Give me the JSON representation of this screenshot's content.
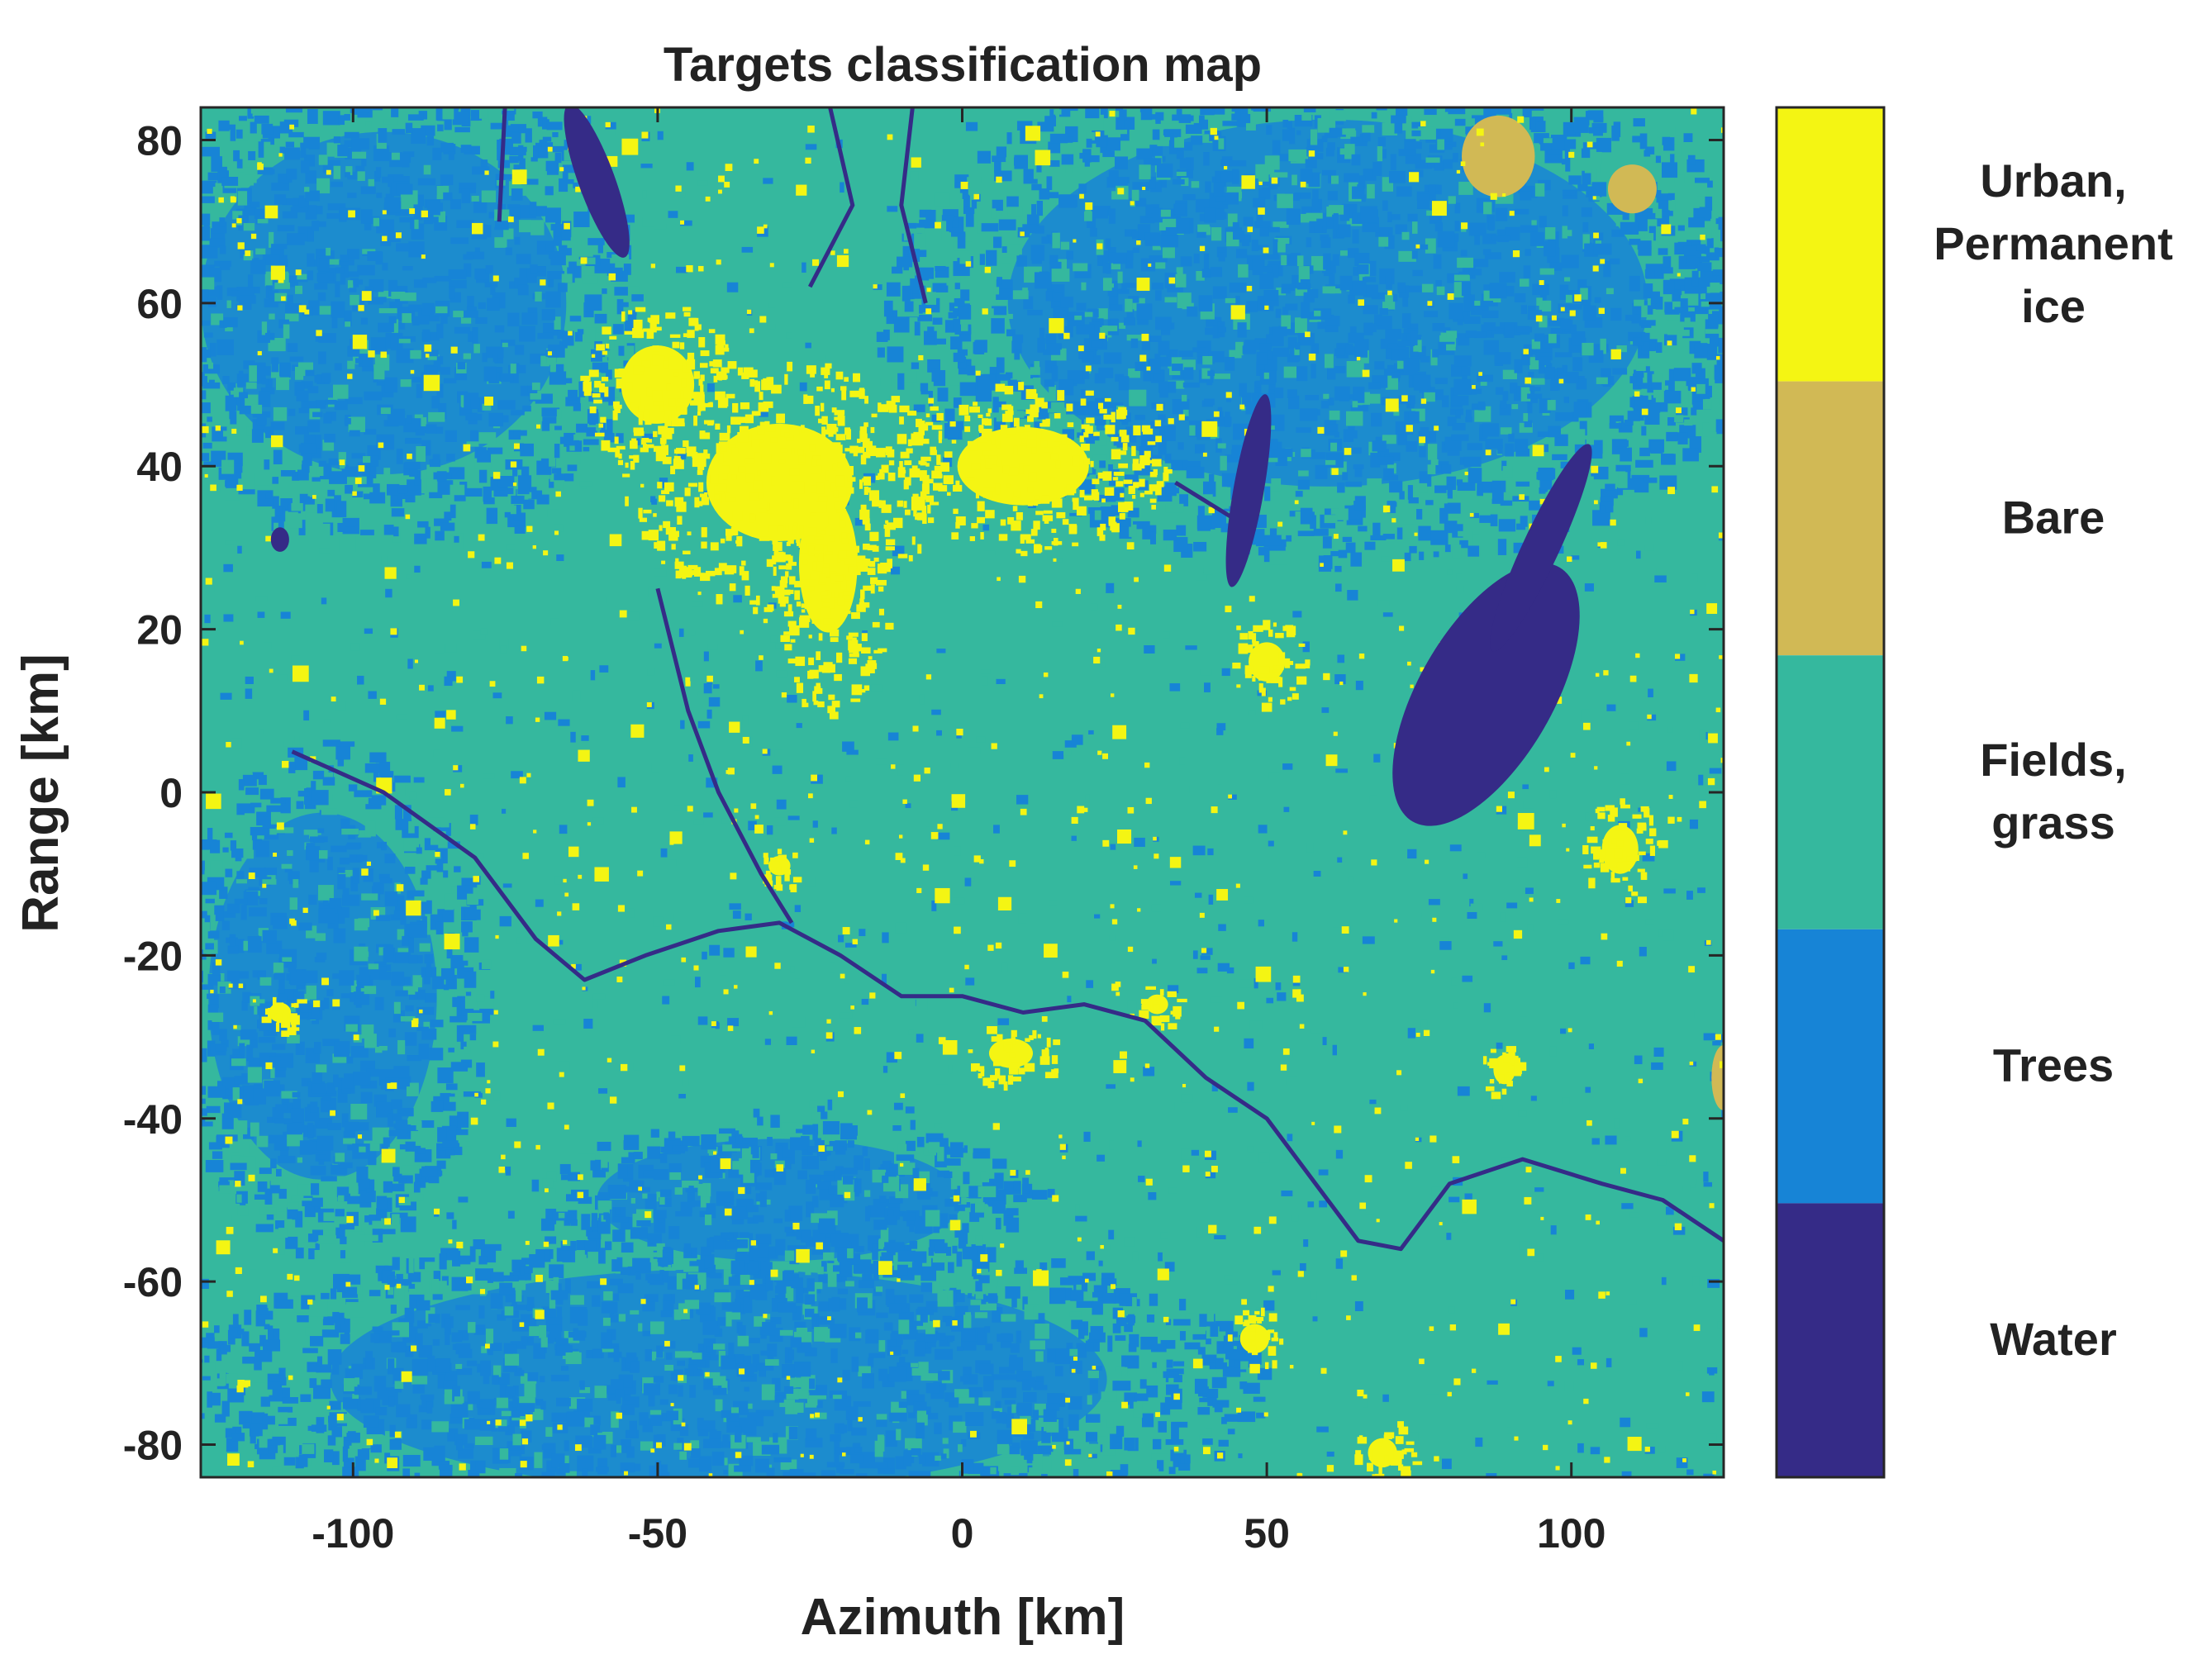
{
  "chart_data": {
    "type": "heatmap",
    "title": "Targets classification map",
    "xlabel": "Azimuth [km]",
    "ylabel": "Range [km]",
    "xlim": [
      -125,
      125
    ],
    "ylim": [
      -84,
      84
    ],
    "xticks": [
      -100,
      -50,
      0,
      50,
      100
    ],
    "yticks": [
      80,
      60,
      40,
      20,
      0,
      -20,
      -40,
      -60,
      -80
    ],
    "classes": [
      {
        "label": "Urban, Permanent ice",
        "lines": [
          "Urban,",
          "Permanent",
          "ice"
        ],
        "color": "#f4f513"
      },
      {
        "label": "Bare",
        "lines": [
          "Bare"
        ],
        "color": "#d1b955"
      },
      {
        "label": "Fields, grass",
        "lines": [
          "Fields,",
          "grass"
        ],
        "color": "#35b89e"
      },
      {
        "label": "Trees",
        "lines": [
          "Trees"
        ],
        "color": "#1784d6"
      },
      {
        "label": "Water",
        "lines": [
          "Water"
        ],
        "color": "#352b87"
      }
    ],
    "regions": {
      "water_lakes": [
        {
          "cx": 86,
          "cy": 12,
          "rx": 11,
          "ry": 18,
          "rot": 30
        },
        {
          "cx": 95,
          "cy": 30,
          "rx": 3,
          "ry": 14,
          "rot": 25
        },
        {
          "cx": 47,
          "cy": 37,
          "rx": 2.5,
          "ry": 12,
          "rot": 10
        },
        {
          "cx": -60,
          "cy": 75,
          "rx": 3,
          "ry": 10,
          "rot": -20
        },
        {
          "cx": -112,
          "cy": 31,
          "rx": 1.5,
          "ry": 1.5,
          "rot": 0
        }
      ],
      "water_rivers": [
        [
          [
            -110,
            5
          ],
          [
            -95,
            0
          ],
          [
            -80,
            -8
          ],
          [
            -70,
            -18
          ],
          [
            -62,
            -23
          ],
          [
            -52,
            -20
          ],
          [
            -40,
            -17
          ],
          [
            -30,
            -16
          ],
          [
            -20,
            -20
          ],
          [
            -10,
            -25
          ],
          [
            0,
            -25
          ],
          [
            10,
            -27
          ],
          [
            20,
            -26
          ],
          [
            30,
            -28
          ],
          [
            40,
            -35
          ],
          [
            50,
            -40
          ],
          [
            58,
            -48
          ],
          [
            65,
            -55
          ],
          [
            72,
            -56
          ],
          [
            80,
            -48
          ],
          [
            92,
            -45
          ],
          [
            105,
            -48
          ],
          [
            115,
            -50
          ],
          [
            125,
            -55
          ]
        ],
        [
          [
            -50,
            25
          ],
          [
            -45,
            10
          ],
          [
            -40,
            0
          ],
          [
            -33,
            -10
          ],
          [
            -28,
            -16
          ]
        ],
        [
          [
            -22,
            85
          ],
          [
            -18,
            72
          ],
          [
            -25,
            62
          ]
        ],
        [
          [
            -8,
            85
          ],
          [
            -10,
            72
          ],
          [
            -6,
            60
          ]
        ],
        [
          [
            -75,
            85
          ],
          [
            -76,
            70
          ]
        ],
        [
          [
            35,
            38
          ],
          [
            48,
            32
          ]
        ]
      ],
      "urban_blobs": [
        {
          "cx": -22,
          "cy": 28,
          "rx": 8,
          "ry": 14
        },
        {
          "cx": -30,
          "cy": 38,
          "rx": 20,
          "ry": 12
        },
        {
          "cx": 10,
          "cy": 40,
          "rx": 18,
          "ry": 8
        },
        {
          "cx": -50,
          "cy": 50,
          "rx": 10,
          "ry": 8
        },
        {
          "cx": 50,
          "cy": 16,
          "rx": 5,
          "ry": 4
        },
        {
          "cx": 108,
          "cy": -7,
          "rx": 5,
          "ry": 5
        },
        {
          "cx": 8,
          "cy": -32,
          "rx": 6,
          "ry": 3
        },
        {
          "cx": 48,
          "cy": -67,
          "rx": 4,
          "ry": 3
        },
        {
          "cx": 69,
          "cy": -81,
          "rx": 4,
          "ry": 3
        },
        {
          "cx": 89,
          "cy": -34,
          "rx": 3,
          "ry": 3
        },
        {
          "cx": -30,
          "cy": -9,
          "rx": 3,
          "ry": 2
        },
        {
          "cx": -112,
          "cy": -27,
          "rx": 3,
          "ry": 2
        },
        {
          "cx": 32,
          "cy": -26,
          "rx": 3,
          "ry": 2
        }
      ],
      "tree_areas": [
        {
          "cx": 60,
          "cy": 60,
          "rx": 70,
          "ry": 30
        },
        {
          "cx": -95,
          "cy": 60,
          "rx": 40,
          "ry": 28
        },
        {
          "cx": -40,
          "cy": -72,
          "rx": 85,
          "ry": 18
        },
        {
          "cx": -105,
          "cy": -25,
          "rx": 25,
          "ry": 30
        },
        {
          "cx": -30,
          "cy": -50,
          "rx": 40,
          "ry": 10
        }
      ],
      "bare_areas": [
        {
          "cx": 88,
          "cy": 78,
          "rx": 6,
          "ry": 5
        },
        {
          "cx": 110,
          "cy": 74,
          "rx": 4,
          "ry": 3
        },
        {
          "cx": 125,
          "cy": -35,
          "rx": 2,
          "ry": 4
        }
      ]
    }
  }
}
